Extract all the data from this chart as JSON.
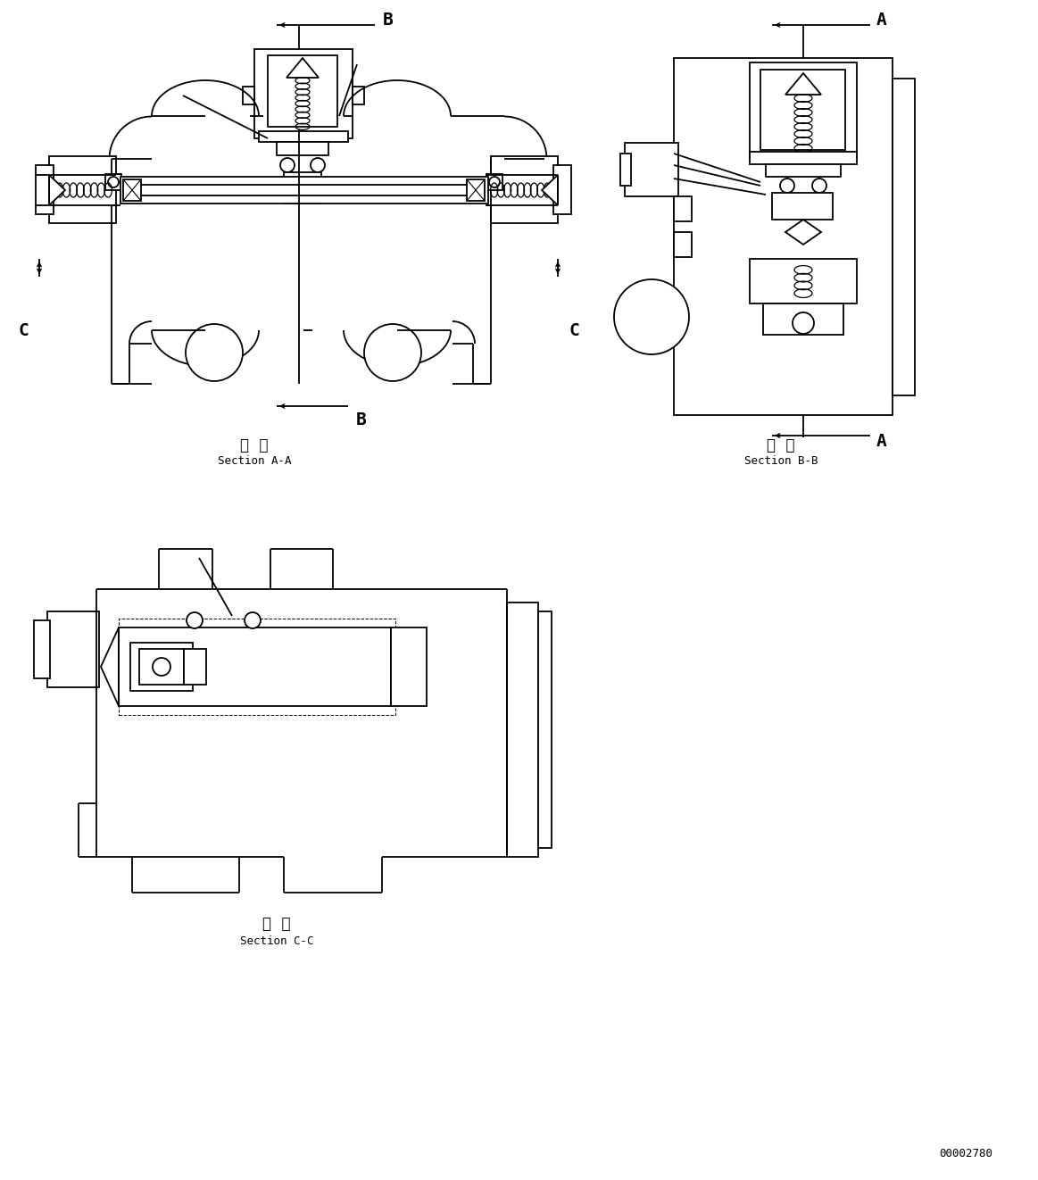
{
  "background_color": "#ffffff",
  "line_color": "#000000",
  "fig_width": 11.63,
  "fig_height": 13.22,
  "section_aa_kanji": "断  面",
  "section_aa_roman": "Section A-A",
  "section_bb_kanji": "断  面",
  "section_bb_roman": "Section B-B",
  "section_cc_kanji": "断  面",
  "section_cc_roman": "Section C-C",
  "part_number": "00002780",
  "label_A": "A",
  "label_B": "B",
  "label_C": "C"
}
